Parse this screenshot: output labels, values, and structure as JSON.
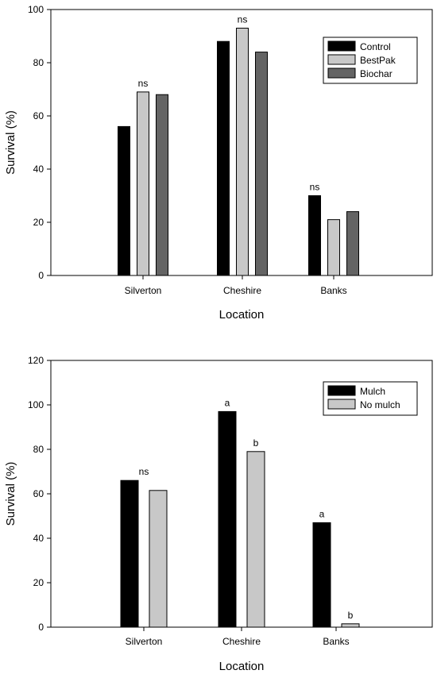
{
  "chart_data": [
    {
      "type": "bar",
      "categories": [
        "Silverton",
        "Cheshire",
        "Banks"
      ],
      "series": [
        {
          "name": "Control",
          "values": [
            56,
            88,
            30
          ],
          "color": "#000000"
        },
        {
          "name": "BestPak",
          "values": [
            69,
            93,
            21
          ],
          "color": "#c8c8c8"
        },
        {
          "name": "Biochar",
          "values": [
            68,
            84,
            24
          ],
          "color": "#646464"
        }
      ],
      "annotations": [
        {
          "category_index": 0,
          "series_index": 1,
          "text": "ns"
        },
        {
          "category_index": 1,
          "series_index": 1,
          "text": "ns"
        },
        {
          "category_index": 2,
          "series_index": 0,
          "text": "ns"
        }
      ],
      "xlabel": "Location",
      "ylabel": "Survival (%)",
      "ylim": [
        0,
        100
      ],
      "yticks": [
        0,
        20,
        40,
        60,
        80,
        100
      ],
      "legend_position": "top-right",
      "grid": false
    },
    {
      "type": "bar",
      "categories": [
        "Silverton",
        "Cheshire",
        "Banks"
      ],
      "series": [
        {
          "name": "Mulch",
          "values": [
            66,
            97,
            47
          ],
          "color": "#000000"
        },
        {
          "name": "No mulch",
          "values": [
            61.5,
            79,
            1.5
          ],
          "color": "#c8c8c8"
        }
      ],
      "annotations": [
        {
          "category_index": 0,
          "series_index": -1,
          "text": "ns"
        },
        {
          "category_index": 1,
          "series_index": 0,
          "text": "a"
        },
        {
          "category_index": 1,
          "series_index": 1,
          "text": "b"
        },
        {
          "category_index": 2,
          "series_index": 0,
          "text": "a"
        },
        {
          "category_index": 2,
          "series_index": 1,
          "text": "b"
        }
      ],
      "xlabel": "Location",
      "ylabel": "Survival (%)",
      "ylim": [
        0,
        120
      ],
      "yticks": [
        0,
        20,
        40,
        60,
        80,
        100,
        120
      ],
      "legend_position": "top-right",
      "grid": false
    }
  ]
}
